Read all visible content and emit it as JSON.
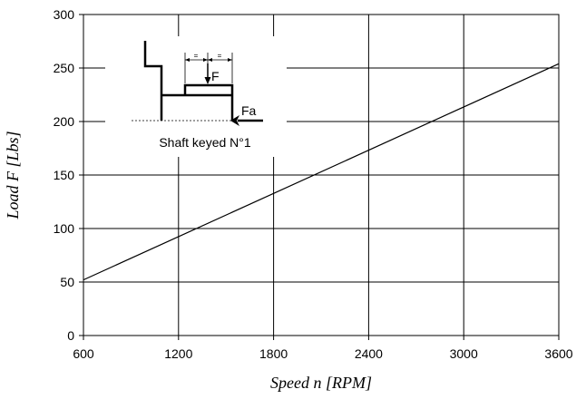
{
  "chart_data": {
    "type": "line",
    "title": "",
    "xlabel": "Speed n [RPM]",
    "ylabel": "Load F [Lbs]",
    "xlim": [
      600,
      3600
    ],
    "ylim": [
      0,
      300
    ],
    "x_ticks": [
      600,
      1200,
      1800,
      2400,
      3000,
      3600
    ],
    "y_ticks": [
      0,
      50,
      100,
      150,
      200,
      250,
      300
    ],
    "grid": true,
    "legend": "none",
    "series": [
      {
        "x": [
          600,
          3600
        ],
        "y": [
          52,
          254
        ]
      }
    ],
    "annotations": {
      "inset_caption": "Shaft keyed N°1",
      "force_label": "F",
      "axial_force_label": "Fa",
      "dimension_marks": [
        "=",
        "="
      ]
    }
  },
  "colors": {
    "line": "#000000",
    "grid": "#000000",
    "background": "#ffffff"
  }
}
